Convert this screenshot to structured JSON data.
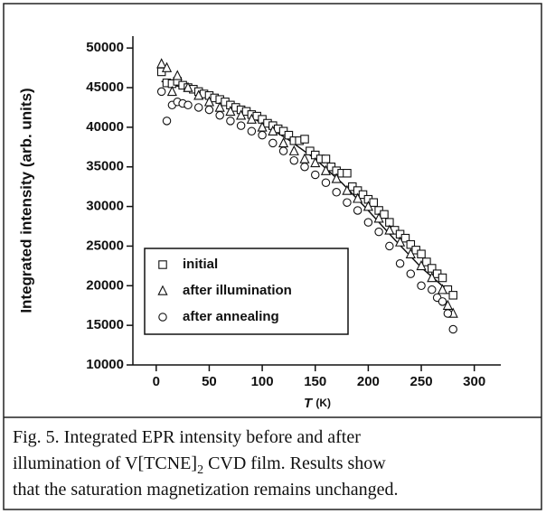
{
  "chart_data": {
    "type": "scatter",
    "ylabel": "Integrated intensity (arb. units)",
    "xlabel": {
      "symbol": "T",
      "unit": "(K)"
    },
    "xlim": [
      -22,
      325
    ],
    "xticks": [
      0,
      50,
      100,
      150,
      200,
      250,
      300
    ],
    "ylim": [
      10000,
      51500
    ],
    "yticks": [
      10000,
      15000,
      20000,
      25000,
      30000,
      35000,
      40000,
      45000,
      50000
    ],
    "legend": "lower left",
    "series": [
      {
        "name": "initial",
        "marker": "square",
        "color": "#111111",
        "x": [
          5,
          10,
          15,
          20,
          25,
          30,
          35,
          40,
          45,
          50,
          55,
          60,
          65,
          70,
          75,
          80,
          85,
          90,
          95,
          100,
          105,
          110,
          115,
          120,
          125,
          130,
          135,
          140,
          145,
          150,
          155,
          160,
          165,
          170,
          175,
          180,
          185,
          190,
          195,
          200,
          205,
          210,
          215,
          220,
          225,
          230,
          235,
          240,
          245,
          250,
          255,
          260,
          265,
          270,
          275,
          280
        ],
        "values": [
          47000,
          45600,
          45500,
          45800,
          45300,
          45000,
          44800,
          44500,
          44200,
          44000,
          43700,
          43500,
          43200,
          42800,
          42500,
          42200,
          42000,
          41600,
          41400,
          41000,
          40500,
          40200,
          39800,
          39500,
          39000,
          38300,
          38300,
          38500,
          37000,
          36500,
          36000,
          36000,
          35000,
          34500,
          34200,
          34200,
          32500,
          32000,
          31500,
          30900,
          30500,
          29500,
          29000,
          28000,
          27000,
          26500,
          26000,
          25200,
          24500,
          24000,
          23000,
          22200,
          21500,
          21000,
          19500,
          18800
        ]
      },
      {
        "name": "after illumination",
        "marker": "triangle",
        "color": "#111111",
        "x": [
          5,
          10,
          15,
          20,
          30,
          40,
          50,
          60,
          70,
          80,
          90,
          100,
          110,
          120,
          130,
          140,
          150,
          160,
          170,
          180,
          190,
          200,
          210,
          220,
          230,
          240,
          250,
          260,
          270,
          275,
          280
        ],
        "values": [
          48000,
          47500,
          44500,
          46500,
          45000,
          44000,
          43200,
          42500,
          42000,
          41500,
          41000,
          40000,
          39500,
          38000,
          37000,
          36000,
          35500,
          34500,
          33500,
          32000,
          31000,
          30000,
          28500,
          27000,
          25500,
          24000,
          22500,
          21000,
          19500,
          17500,
          16500
        ]
      },
      {
        "name": "after annealing",
        "marker": "circle",
        "color": "#111111",
        "x": [
          5,
          10,
          15,
          20,
          25,
          30,
          40,
          50,
          60,
          70,
          80,
          90,
          100,
          110,
          120,
          130,
          140,
          150,
          160,
          170,
          180,
          190,
          200,
          210,
          220,
          230,
          240,
          250,
          260,
          265,
          270,
          275,
          280
        ],
        "values": [
          44500,
          40800,
          42800,
          43200,
          43000,
          42800,
          42500,
          42200,
          41500,
          40800,
          40200,
          39500,
          39000,
          38000,
          37000,
          35800,
          35000,
          34000,
          33000,
          31800,
          30500,
          29500,
          28000,
          26800,
          25000,
          22800,
          21500,
          20000,
          19500,
          18500,
          18000,
          16500,
          14500
        ]
      }
    ],
    "curve": {
      "color": "#111111",
      "x": [
        5,
        25,
        50,
        75,
        100,
        125,
        150,
        175,
        200,
        225,
        250,
        280
      ],
      "values": [
        45800,
        45000,
        43800,
        42300,
        40500,
        38400,
        36000,
        33000,
        29500,
        25800,
        22300,
        18800
      ]
    }
  },
  "caption": {
    "lines": [
      {
        "text": "Fig. 5.  Integrated EPR intensity before and after"
      },
      {
        "text": "illumination of V[TCNE]",
        "sub": "2",
        "rest": " CVD film.  Results show"
      },
      {
        "text": "that the saturation magnetization remains unchanged."
      }
    ]
  }
}
